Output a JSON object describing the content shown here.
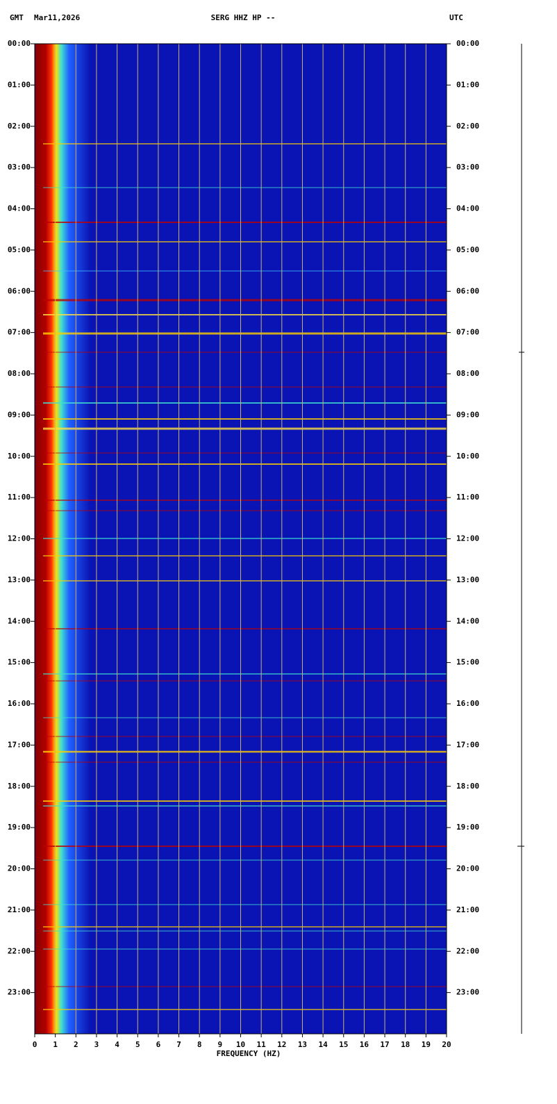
{
  "chart_data": {
    "type": "spectrogram",
    "title": "SERG HHZ HP --",
    "date": "Mar11,2026",
    "left_zone": "GMT",
    "right_zone": "UTC",
    "x_label": "FREQUENCY (HZ)",
    "xlim": [
      0,
      20
    ],
    "xticks": [
      0,
      1,
      2,
      3,
      4,
      5,
      6,
      7,
      8,
      9,
      10,
      11,
      12,
      13,
      14,
      15,
      16,
      17,
      18,
      19,
      20
    ],
    "ylim": [
      0,
      24
    ],
    "yticks": [
      {
        "value": 0,
        "label": "00:00"
      },
      {
        "value": 1,
        "label": "01:00"
      },
      {
        "value": 2,
        "label": "02:00"
      },
      {
        "value": 3,
        "label": "03:00"
      },
      {
        "value": 4,
        "label": "04:00"
      },
      {
        "value": 5,
        "label": "05:00"
      },
      {
        "value": 6,
        "label": "06:00"
      },
      {
        "value": 7,
        "label": "07:00"
      },
      {
        "value": 8,
        "label": "08:00"
      },
      {
        "value": 9,
        "label": "09:00"
      },
      {
        "value": 10,
        "label": "10:00"
      },
      {
        "value": 11,
        "label": "11:00"
      },
      {
        "value": 12,
        "label": "12:00"
      },
      {
        "value": 13,
        "label": "13:00"
      },
      {
        "value": 14,
        "label": "14:00"
      },
      {
        "value": 15,
        "label": "15:00"
      },
      {
        "value": 16,
        "label": "16:00"
      },
      {
        "value": 17,
        "label": "17:00"
      },
      {
        "value": 18,
        "label": "18:00"
      },
      {
        "value": 19,
        "label": "19:00"
      },
      {
        "value": 20,
        "label": "20:00"
      },
      {
        "value": 21,
        "label": "21:00"
      },
      {
        "value": 22,
        "label": "22:00"
      },
      {
        "value": 23,
        "label": "23:00"
      }
    ],
    "xgrid": true,
    "grid_color": "#c8b46e"
  }
}
